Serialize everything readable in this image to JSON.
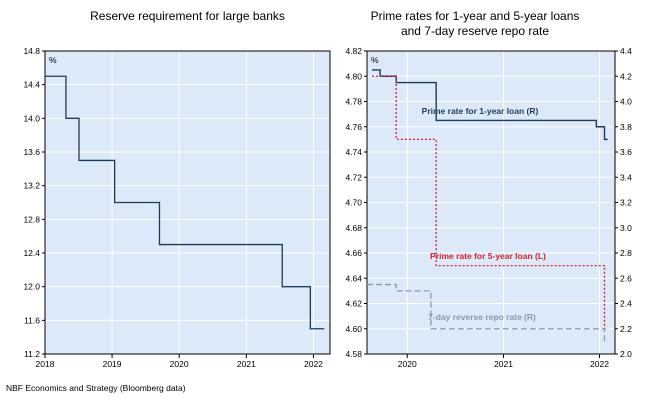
{
  "chart_data": [
    {
      "type": "line",
      "title": "Reserve requirement for large banks",
      "unit_label": "%",
      "ylim": [
        11.2,
        14.8
      ],
      "y_ticks": [
        "14.8",
        "14.4",
        "14.0",
        "13.6",
        "13.2",
        "12.8",
        "12.4",
        "12.0",
        "11.6",
        "11.2"
      ],
      "xlim": [
        "2018-01-01",
        "2022-04-01"
      ],
      "x_ticks": [
        "2018",
        "2019",
        "2020",
        "2021",
        "2022"
      ],
      "grid": true,
      "background": "#dbe9f9",
      "series": [
        {
          "color": "#1f3b57",
          "step": true,
          "x": [
            "2018-01-01",
            "2018-04-25",
            "2018-07-05",
            "2019-01-15",
            "2019-09-16",
            "2020-01-06",
            "2021-01-15",
            "2021-07-15",
            "2021-12-15",
            "2022-03-01"
          ],
          "y": [
            14.5,
            14.0,
            13.5,
            13.0,
            12.5,
            12.5,
            12.5,
            12.0,
            11.5,
            11.5
          ]
        }
      ]
    },
    {
      "type": "line",
      "title": "Prime rates for 1-year and 5-year loans\nand 7-day reserve repo rate",
      "unit_label": "%",
      "left_axis": {
        "ylim": [
          4.58,
          4.82
        ],
        "ticks": [
          "4.82",
          "4.80",
          "4.78",
          "4.76",
          "4.74",
          "4.72",
          "4.70",
          "4.68",
          "4.66",
          "4.64",
          "4.62",
          "4.60",
          "4.58"
        ]
      },
      "right_axis": {
        "ylim": [
          2.0,
          4.4
        ],
        "ticks": [
          "4.4",
          "4.2",
          "4.0",
          "3.8",
          "3.6",
          "3.4",
          "3.2",
          "3.0",
          "2.8",
          "2.6",
          "2.4",
          "2.2",
          "2.0"
        ]
      },
      "xlim": [
        "2019-08-01",
        "2022-03-01"
      ],
      "x_ticks": [
        "2020",
        "2021",
        "2022"
      ],
      "grid": true,
      "background": "#dbe9f9",
      "series": [
        {
          "name": "Prime rate for 1-year loan (R)",
          "axis": "right",
          "color": "#1f3b57",
          "style": "solid",
          "step": true,
          "x": [
            "2019-08-20",
            "2019-09-20",
            "2019-11-20",
            "2020-04-20",
            "2021-12-20",
            "2022-01-20",
            "2022-02-01"
          ],
          "y": [
            4.25,
            4.2,
            4.15,
            3.85,
            3.8,
            3.7,
            3.7
          ]
        },
        {
          "name": "Prime rate for 5-year loan (L)",
          "axis": "left",
          "color": "#d8202a",
          "style": "dotted",
          "step": true,
          "x": [
            "2019-08-20",
            "2019-11-20",
            "2020-04-20",
            "2022-01-20",
            "2022-02-01"
          ],
          "y": [
            4.8,
            4.75,
            4.65,
            4.6,
            4.6
          ]
        },
        {
          "name": "7-day reverse repo rate (R)",
          "axis": "right",
          "color": "#8a9bab",
          "style": "dashed",
          "step": true,
          "x": [
            "2019-08-01",
            "2019-11-20",
            "2020-03-31",
            "2022-01-20",
            "2022-02-01"
          ],
          "y": [
            2.55,
            2.5,
            2.2,
            2.1,
            2.1
          ]
        }
      ]
    }
  ],
  "source": "NBF Economics and Strategy (Bloomberg data)"
}
